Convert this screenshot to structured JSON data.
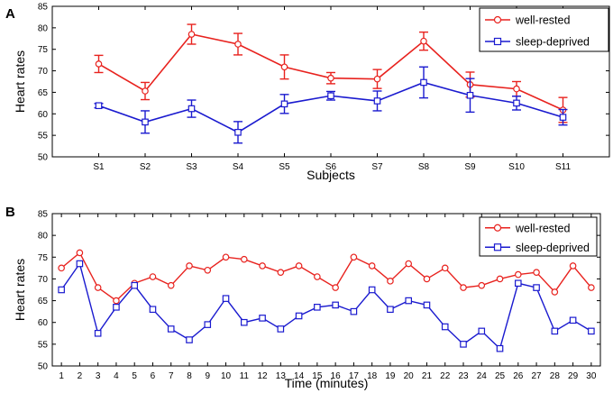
{
  "colors": {
    "well_rested": "#e8221e",
    "sleep_deprived": "#1a1acf",
    "axis": "#000000",
    "grid_frame": "#000000"
  },
  "chart_data": [
    {
      "panel_label": "A",
      "type": "line",
      "title": "",
      "xlabel": "Subjects",
      "ylabel": "Heart rates",
      "ylim": [
        50,
        85
      ],
      "yticks": [
        "50",
        "55",
        "60",
        "65",
        "70",
        "75",
        "80",
        "85"
      ],
      "categories": [
        "S1",
        "S2",
        "S3",
        "S4",
        "S5",
        "S6",
        "S7",
        "S8",
        "S9",
        "S10",
        "S11"
      ],
      "error_bars": true,
      "legend_position": "top-right",
      "series": [
        {
          "name": "well-rested",
          "marker": "circle",
          "values": [
            71.6,
            65.3,
            78.5,
            76.2,
            70.9,
            68.3,
            68.1,
            76.9,
            66.8,
            65.8,
            60.9
          ],
          "errors": [
            2.0,
            2.0,
            2.3,
            2.5,
            2.8,
            1.3,
            2.2,
            2.1,
            2.9,
            1.7,
            2.9
          ]
        },
        {
          "name": "sleep-deprived",
          "marker": "square",
          "values": [
            61.9,
            58.1,
            61.2,
            55.7,
            62.3,
            64.2,
            63.0,
            67.3,
            64.3,
            62.5,
            59.2
          ],
          "errors": [
            0.5,
            2.6,
            2.0,
            2.5,
            2.2,
            1.0,
            2.3,
            3.6,
            3.9,
            1.6,
            1.8
          ]
        }
      ]
    },
    {
      "panel_label": "B",
      "type": "line",
      "title": "",
      "xlabel": "Time (minutes)",
      "ylabel": "Heart rates",
      "ylim": [
        50,
        85
      ],
      "yticks": [
        "50",
        "55",
        "60",
        "65",
        "70",
        "75",
        "80",
        "85"
      ],
      "categories": [
        "1",
        "2",
        "3",
        "4",
        "5",
        "6",
        "7",
        "8",
        "9",
        "10",
        "11",
        "12",
        "13",
        "14",
        "15",
        "16",
        "17",
        "18",
        "19",
        "20",
        "21",
        "22",
        "23",
        "24",
        "25",
        "26",
        "27",
        "28",
        "29",
        "30"
      ],
      "error_bars": false,
      "legend_position": "top-right",
      "series": [
        {
          "name": "well-rested",
          "marker": "circle",
          "values": [
            72.5,
            76.0,
            68.0,
            65.0,
            69.0,
            70.5,
            68.5,
            73.0,
            72.0,
            75.0,
            74.5,
            73.0,
            71.5,
            73.0,
            70.5,
            68.0,
            75.0,
            73.0,
            69.5,
            73.5,
            70.0,
            72.5,
            68.0,
            68.5,
            70.0,
            71.0,
            71.5,
            67.0,
            73.0,
            68.0
          ]
        },
        {
          "name": "sleep-deprived",
          "marker": "square",
          "values": [
            67.5,
            73.5,
            57.5,
            63.5,
            68.5,
            63.0,
            58.5,
            56.0,
            59.5,
            65.5,
            60.0,
            61.0,
            58.5,
            61.5,
            63.5,
            64.0,
            62.5,
            67.5,
            63.0,
            65.0,
            64.0,
            59.0,
            55.0,
            58.0,
            54.0,
            69.0,
            68.0,
            58.0,
            60.5,
            58.0
          ]
        }
      ]
    }
  ]
}
